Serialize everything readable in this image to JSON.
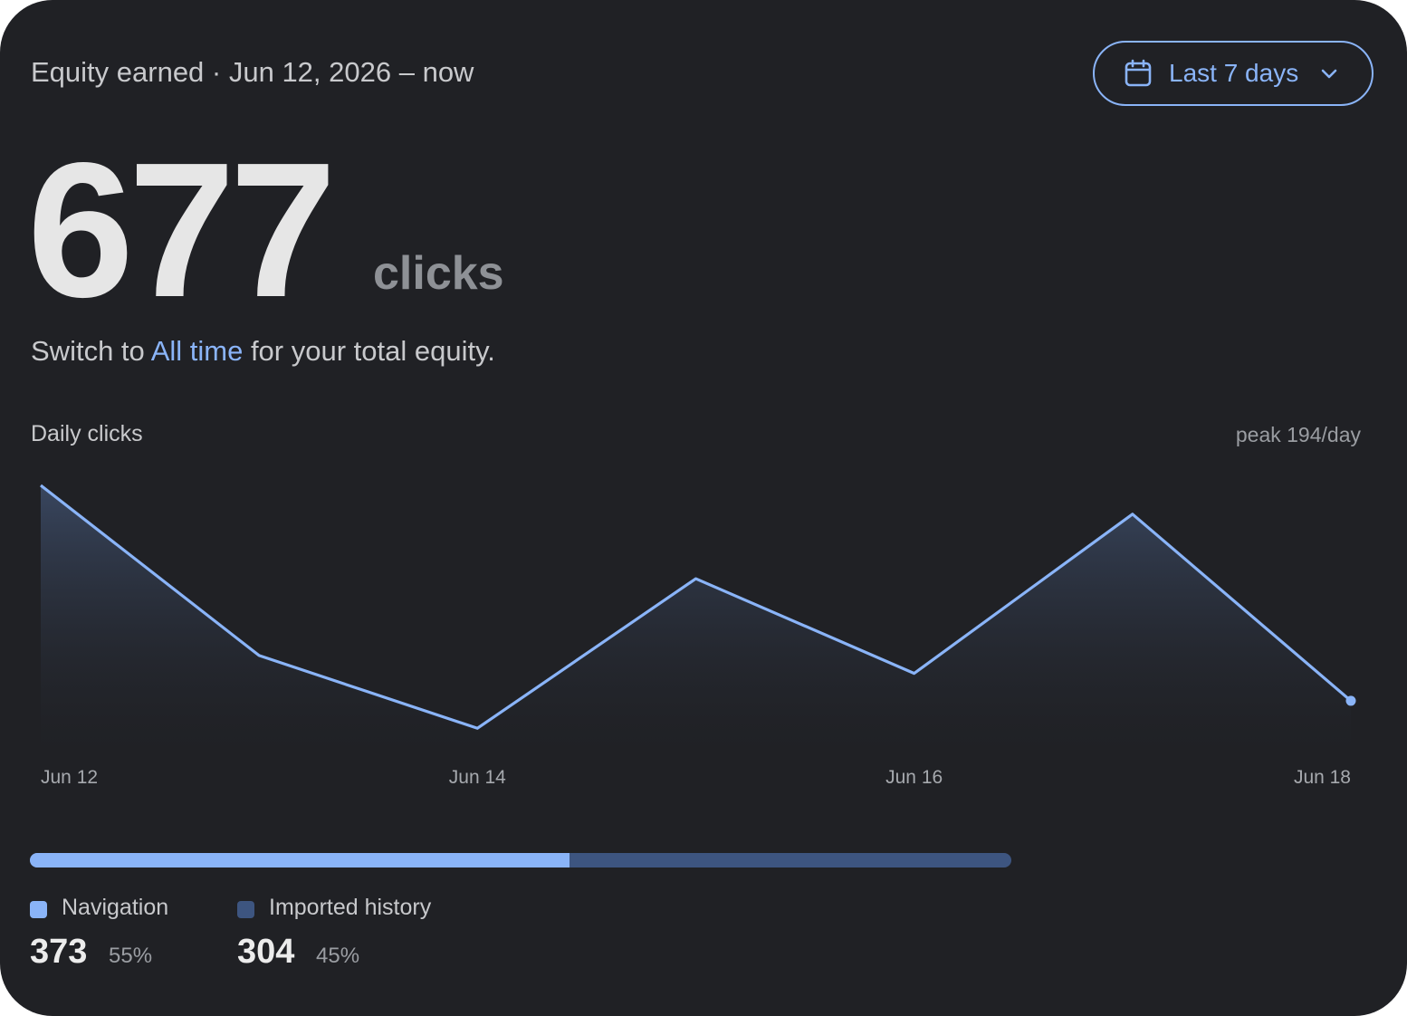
{
  "header": {
    "title": "Equity earned · Jun 12, 2026 – now",
    "range_label": "Last 7 days",
    "range_icon": "calendar-icon",
    "dropdown_icon": "chevron-down-icon"
  },
  "summary": {
    "value": "677",
    "unit": "clicks",
    "hint_prefix": "Switch to ",
    "hint_link": "All time",
    "hint_suffix": " for your total equity."
  },
  "colors": {
    "accent": "#8ab4f8",
    "secondary": "#3d5580",
    "background": "#202125"
  },
  "chart_data": {
    "type": "area",
    "title": "Daily clicks",
    "annotation": "peak 194/day",
    "x": [
      "Jun 12",
      "Jun 13",
      "Jun 14",
      "Jun 15",
      "Jun 16",
      "Jun 17",
      "Jun 18"
    ],
    "tick_labels": [
      "Jun 12",
      "Jun 14",
      "Jun 16",
      "Jun 18"
    ],
    "values": [
      194,
      70,
      17,
      126,
      57,
      173,
      37
    ],
    "ylim": [
      0,
      194
    ],
    "grid": false,
    "last_point_marker": true
  },
  "breakdown": {
    "items": [
      {
        "name": "Navigation",
        "value": "373",
        "percent": "55%",
        "fraction": 0.55,
        "color": "#8ab4f8"
      },
      {
        "name": "Imported history",
        "value": "304",
        "percent": "45%",
        "fraction": 0.45,
        "color": "#3d5580"
      }
    ]
  }
}
